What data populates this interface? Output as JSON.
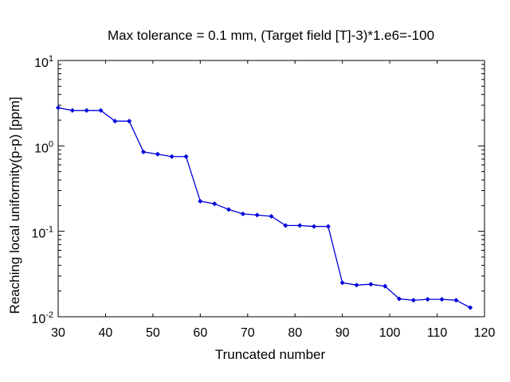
{
  "chart_data": {
    "type": "line",
    "title": "Max tolerance = 0.1 mm, (Target field [T]-3)*1.e6=-100",
    "xlabel": "Truncated number",
    "ylabel": "Reaching local uniformity(p-p) [ppm]",
    "xlim": [
      30,
      120
    ],
    "ylim": [
      0.01,
      10
    ],
    "yscale": "log",
    "grid": false,
    "xticks": [
      "30",
      "40",
      "50",
      "60",
      "70",
      "80",
      "90",
      "100",
      "110",
      "120"
    ],
    "yticks": [
      {
        "value": 0.01,
        "base": "10",
        "exp": "-2"
      },
      {
        "value": 0.1,
        "base": "10",
        "exp": "-1"
      },
      {
        "value": 1,
        "base": "10",
        "exp": "0"
      },
      {
        "value": 10,
        "base": "10",
        "exp": "1"
      }
    ],
    "series": [
      {
        "color": "#0000dd",
        "marker": "diamond",
        "x": [
          30,
          33,
          36,
          39,
          42,
          45,
          48,
          51,
          54,
          57,
          60,
          63,
          66,
          69,
          72,
          75,
          78,
          81,
          84,
          87,
          90,
          93,
          96,
          99,
          102,
          105,
          108,
          111,
          114,
          117
        ],
        "y": [
          2.8,
          2.6,
          2.6,
          2.6,
          1.95,
          1.95,
          0.85,
          0.8,
          0.75,
          0.75,
          0.225,
          0.21,
          0.18,
          0.16,
          0.155,
          0.15,
          0.117,
          0.117,
          0.114,
          0.114,
          0.025,
          0.0235,
          0.024,
          0.0228,
          0.0162,
          0.0156,
          0.016,
          0.016,
          0.0156,
          0.0128
        ]
      }
    ]
  }
}
